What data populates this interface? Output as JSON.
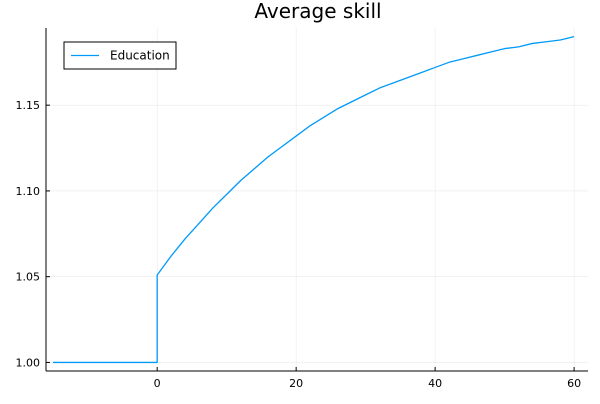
{
  "chart_data": {
    "type": "line",
    "title": "Average skill",
    "xlabel": "",
    "ylabel": "",
    "xlim": [
      -16,
      62
    ],
    "ylim": [
      0.995,
      1.195
    ],
    "xticks": [
      0,
      20,
      40,
      60
    ],
    "yticks": [
      1.0,
      1.05,
      1.1,
      1.15
    ],
    "xtick_labels": [
      "0",
      "20",
      "40",
      "60"
    ],
    "ytick_labels": [
      "1.00",
      "1.05",
      "1.10",
      "1.15"
    ],
    "grid": true,
    "legend_position": "top-left",
    "series": [
      {
        "name": "Education",
        "color": "#009af9",
        "x": [
          -15,
          -10,
          -5,
          0,
          0,
          2,
          4,
          6,
          8,
          10,
          12,
          14,
          16,
          18,
          20,
          22,
          24,
          26,
          28,
          30,
          32,
          34,
          36,
          38,
          40,
          42,
          44,
          46,
          48,
          50,
          52,
          54,
          56,
          58,
          60
        ],
        "y": [
          1.0,
          1.0,
          1.0,
          1.0,
          1.051,
          1.062,
          1.072,
          1.081,
          1.09,
          1.098,
          1.106,
          1.113,
          1.12,
          1.126,
          1.132,
          1.138,
          1.143,
          1.148,
          1.152,
          1.156,
          1.16,
          1.163,
          1.166,
          1.169,
          1.172,
          1.175,
          1.177,
          1.179,
          1.181,
          1.183,
          1.184,
          1.186,
          1.187,
          1.188,
          1.19
        ]
      }
    ]
  }
}
